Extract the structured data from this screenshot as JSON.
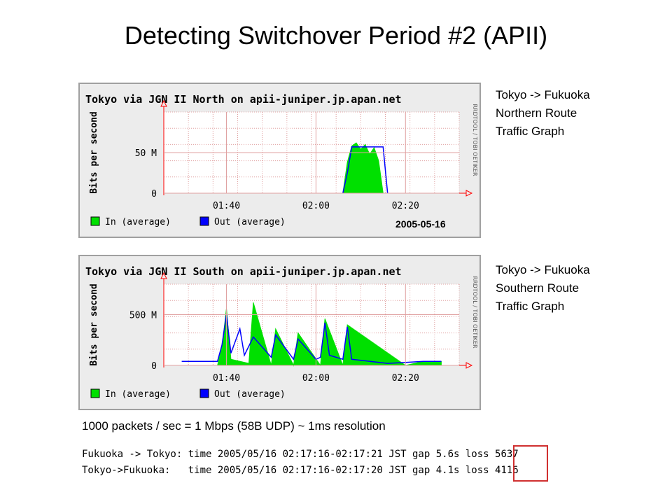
{
  "slide": {
    "title": "Detecting Switchover Period #2 (APII)",
    "date_label": "2005-05-16",
    "notes": {
      "resolution": "1000 packets / sec = 1 Mbps (58B UDP) ~ 1ms resolution",
      "log_lines": [
        "Fukuoka -> Tokyo: time 2005/05/16 02:17:16-02:17:21 JST gap 5.6s loss 5637",
        "Tokyo->Fukuoka:   time 2005/05/16 02:17:16-02:17:20 JST gap 4.1s loss 4116"
      ]
    },
    "captions": [
      {
        "line1": "Tokyo -> Fukuoka",
        "line2": "Northern Route",
        "line3": "Traffic Graph"
      },
      {
        "line1": "Tokyo -> Fukuoka",
        "line2": "Southern Route",
        "line3": "Traffic Graph"
      }
    ]
  },
  "colors": {
    "in": "#00e000",
    "out": "#0000ff",
    "grid": "#e0a0a0",
    "axis": "#ff0000",
    "highlight": "#d03030"
  },
  "chart_data": [
    {
      "type": "area",
      "title": "Tokyo via JGN II North on apii-juniper.jp.apan.net",
      "ylabel": "Bits per second",
      "side_label": "RRDTOOL / TOBI OETIKER",
      "ylim": [
        0,
        100000000
      ],
      "y_ticks": [
        {
          "value": 0,
          "label": "0"
        },
        {
          "value": 50000000,
          "label": "50 M"
        }
      ],
      "x_ticks": [
        "01:40",
        "02:00",
        "02:20"
      ],
      "legend": [
        "In (average)",
        "Out (average)"
      ],
      "series": [
        {
          "name": "In (average)",
          "x": [
            "02:06",
            "02:07",
            "02:08",
            "02:09",
            "02:10",
            "02:11",
            "02:12",
            "02:13",
            "02:14",
            "02:15"
          ],
          "values": [
            0,
            38000000,
            58000000,
            62000000,
            54000000,
            60000000,
            48000000,
            56000000,
            40000000,
            0
          ]
        },
        {
          "name": "Out (average)",
          "x": [
            "02:06",
            "02:07",
            "02:08",
            "02:15",
            "02:16"
          ],
          "values": [
            0,
            25000000,
            57000000,
            57000000,
            0
          ]
        }
      ]
    },
    {
      "type": "area",
      "title": "Tokyo via JGN II South on apii-juniper.jp.apan.net",
      "ylabel": "Bits per second",
      "side_label": "RRDTOOL / TOBI OETIKER",
      "ylim": [
        0,
        800000000
      ],
      "y_ticks": [
        {
          "value": 0,
          "label": "0"
        },
        {
          "value": 500000000,
          "label": "500 M"
        }
      ],
      "x_ticks": [
        "01:40",
        "02:00",
        "02:20"
      ],
      "legend": [
        "In (average)",
        "Out (average)"
      ],
      "series": [
        {
          "name": "In (average)",
          "x": [
            "01:38",
            "01:39",
            "01:40",
            "01:41",
            "01:45",
            "01:46",
            "01:50",
            "01:51",
            "01:55",
            "01:56",
            "02:01",
            "02:02",
            "02:06",
            "02:07",
            "02:20",
            "02:24",
            "02:28"
          ],
          "values": [
            0,
            180000000,
            560000000,
            60000000,
            20000000,
            620000000,
            0,
            360000000,
            0,
            320000000,
            0,
            460000000,
            0,
            400000000,
            0,
            40000000,
            40000000
          ]
        },
        {
          "name": "Out (average)",
          "x": [
            "01:30",
            "01:38",
            "01:39",
            "01:40",
            "01:41",
            "01:43",
            "01:44",
            "01:46",
            "01:50",
            "01:51",
            "01:55",
            "01:56",
            "02:00",
            "02:01",
            "02:02",
            "02:03",
            "02:06",
            "02:07",
            "02:08",
            "02:16",
            "02:20",
            "02:24",
            "02:28"
          ],
          "values": [
            40000000,
            40000000,
            200000000,
            500000000,
            120000000,
            360000000,
            100000000,
            280000000,
            80000000,
            300000000,
            60000000,
            260000000,
            60000000,
            80000000,
            420000000,
            100000000,
            60000000,
            380000000,
            60000000,
            20000000,
            30000000,
            40000000,
            40000000
          ]
        }
      ]
    }
  ]
}
